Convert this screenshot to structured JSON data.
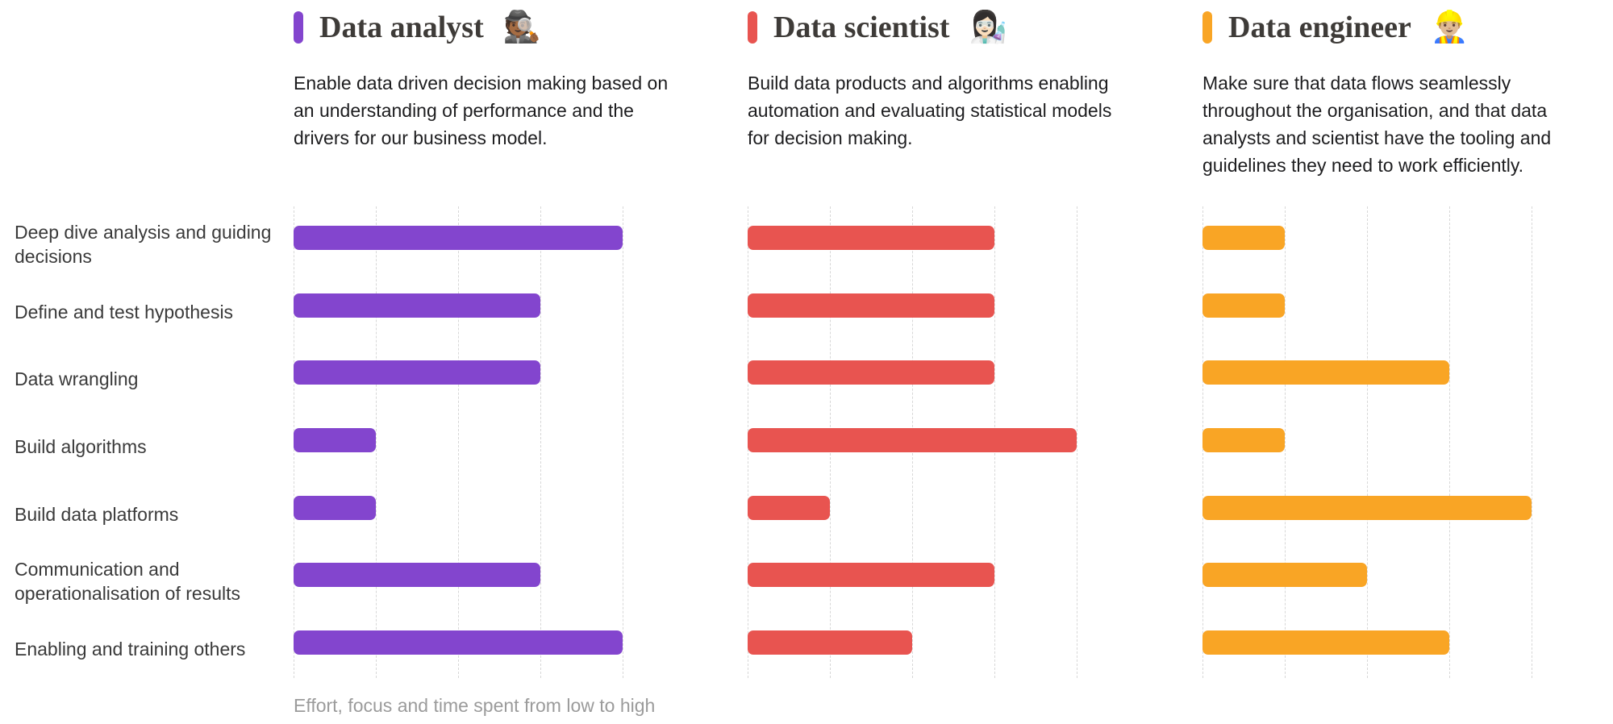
{
  "chart_data": {
    "type": "bar",
    "orientation": "horizontal",
    "caption": "Effort, focus and time spent from low to high",
    "categories": [
      "Deep dive analysis and guiding decisions",
      "Define and test hypothesis",
      "Data wrangling",
      "Build algorithms",
      "Build data platforms",
      "Communication and operationalisation of results",
      "Enabling and training others"
    ],
    "value_axis": {
      "label": "Effort, focus and time spent from low to high",
      "min": 0,
      "max": 4,
      "gridline_count": 5,
      "grid_style": "vertical-dashed"
    },
    "legend_position": "none",
    "series": [
      {
        "name": "Data analyst",
        "emoji": "🕵🏾",
        "emoji_name": "detective-emoji",
        "color": "#8345CE",
        "description": "Enable data driven decision making based on an understanding of performance and the drivers for our business model.",
        "values": [
          4,
          3,
          3,
          1,
          1,
          3,
          4
        ]
      },
      {
        "name": "Data scientist",
        "emoji": "👩🏻‍🔬",
        "emoji_name": "woman-scientist-emoji",
        "color": "#E85450",
        "description": "Build data products and algorithms enabling automation and evaluating statistical models for decision making.",
        "values": [
          3,
          3,
          3,
          4,
          1,
          3,
          2
        ]
      },
      {
        "name": "Data engineer",
        "emoji": "👷🏼‍♂️",
        "emoji_name": "construction-worker-emoji",
        "color": "#F9A525",
        "description": "Make sure that data flows seamlessly throughout the organisation, and that data analysts and scientist have the tooling and guidelines they need to work efficiently.",
        "values": [
          1,
          1,
          3,
          1,
          4,
          2,
          3
        ]
      }
    ]
  }
}
